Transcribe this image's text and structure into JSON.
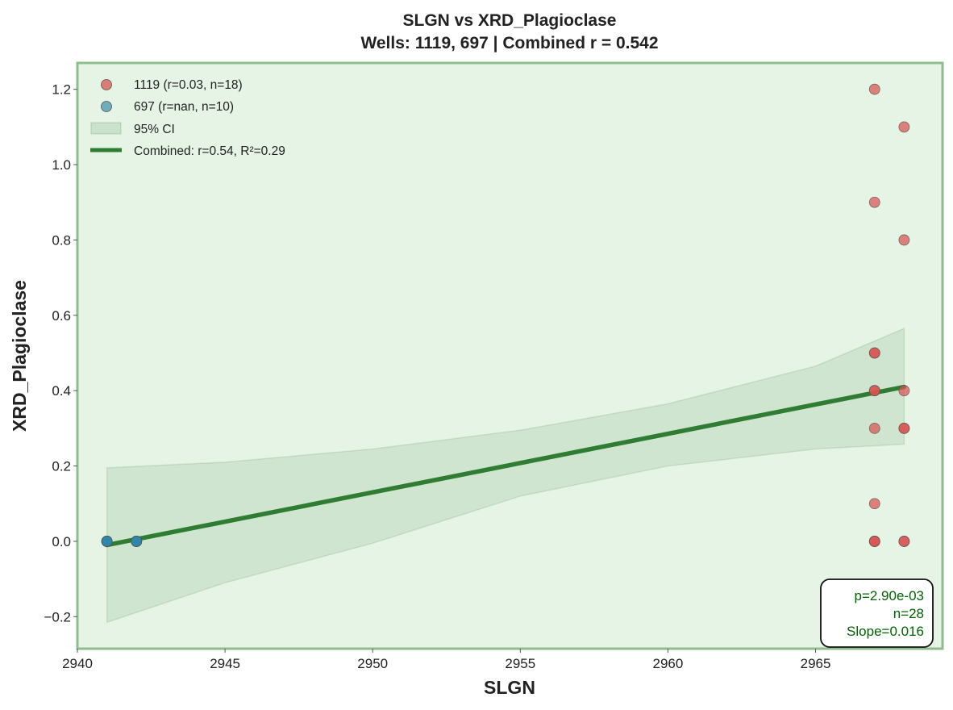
{
  "chart_data": {
    "type": "scatter",
    "title": "SLGN vs XRD_Plagioclase",
    "subtitle": "Wells: 1119, 697 | Combined r = 0.542",
    "xlabel": "SLGN",
    "ylabel": "XRD_Plagioclase",
    "xlim": [
      2940,
      2969.3
    ],
    "ylim": [
      -0.285,
      1.27
    ],
    "xticks": [
      "2940",
      "2945",
      "2950",
      "2955",
      "2960",
      "2965"
    ],
    "yticks": [
      "−0.2",
      "0.0",
      "0.2",
      "0.4",
      "0.6",
      "0.8",
      "1.0",
      "1.2"
    ],
    "grid": false,
    "legend_position": "top-left",
    "series": [
      {
        "name": "1119 (r=0.03, n=18)",
        "color": "#d9534f",
        "points": [
          {
            "x": 2967,
            "y": 1.2
          },
          {
            "x": 2968,
            "y": 1.1
          },
          {
            "x": 2967,
            "y": 0.9
          },
          {
            "x": 2968,
            "y": 0.8
          },
          {
            "x": 2967,
            "y": 0.5
          },
          {
            "x": 2967,
            "y": 0.5
          },
          {
            "x": 2967,
            "y": 0.4
          },
          {
            "x": 2967,
            "y": 0.4
          },
          {
            "x": 2968,
            "y": 0.4
          },
          {
            "x": 2967,
            "y": 0.3
          },
          {
            "x": 2968,
            "y": 0.3
          },
          {
            "x": 2968,
            "y": 0.3
          },
          {
            "x": 2967,
            "y": 0.1
          },
          {
            "x": 2967,
            "y": 0.0
          },
          {
            "x": 2967,
            "y": 0.0
          },
          {
            "x": 2967,
            "y": 0.0
          },
          {
            "x": 2968,
            "y": 0.0
          },
          {
            "x": 2968,
            "y": 0.0
          }
        ]
      },
      {
        "name": "697 (r=nan, n=10)",
        "color": "#2e86ab",
        "points": [
          {
            "x": 2941,
            "y": 0.0
          },
          {
            "x": 2941,
            "y": 0.0
          },
          {
            "x": 2941,
            "y": 0.0
          },
          {
            "x": 2941,
            "y": 0.0
          },
          {
            "x": 2941,
            "y": 0.0
          },
          {
            "x": 2942,
            "y": 0.0
          },
          {
            "x": 2942,
            "y": 0.0
          },
          {
            "x": 2942,
            "y": 0.0
          },
          {
            "x": 2942,
            "y": 0.0
          },
          {
            "x": 2942,
            "y": 0.0
          }
        ]
      }
    ],
    "ci_band": {
      "name": "95% CI",
      "color": "#2e7d32",
      "x": [
        2941,
        2945,
        2950,
        2955,
        2960,
        2965,
        2968
      ],
      "upper": [
        0.195,
        0.21,
        0.245,
        0.295,
        0.365,
        0.465,
        0.565
      ],
      "lower": [
        -0.215,
        -0.11,
        -0.005,
        0.12,
        0.2,
        0.245,
        0.258
      ]
    },
    "fit_line": {
      "name": "Combined: r=0.54, R²=0.29",
      "color": "#2e7d32",
      "x": [
        2941,
        2968
      ],
      "y": [
        -0.01,
        0.41
      ]
    },
    "stats_box": [
      "p=2.90e-03",
      "n=28",
      "Slope=0.016"
    ],
    "colors": {
      "plot_background": "#e6f4e6",
      "plot_border": "#8fbc8f",
      "stats_text": "#006400"
    }
  }
}
